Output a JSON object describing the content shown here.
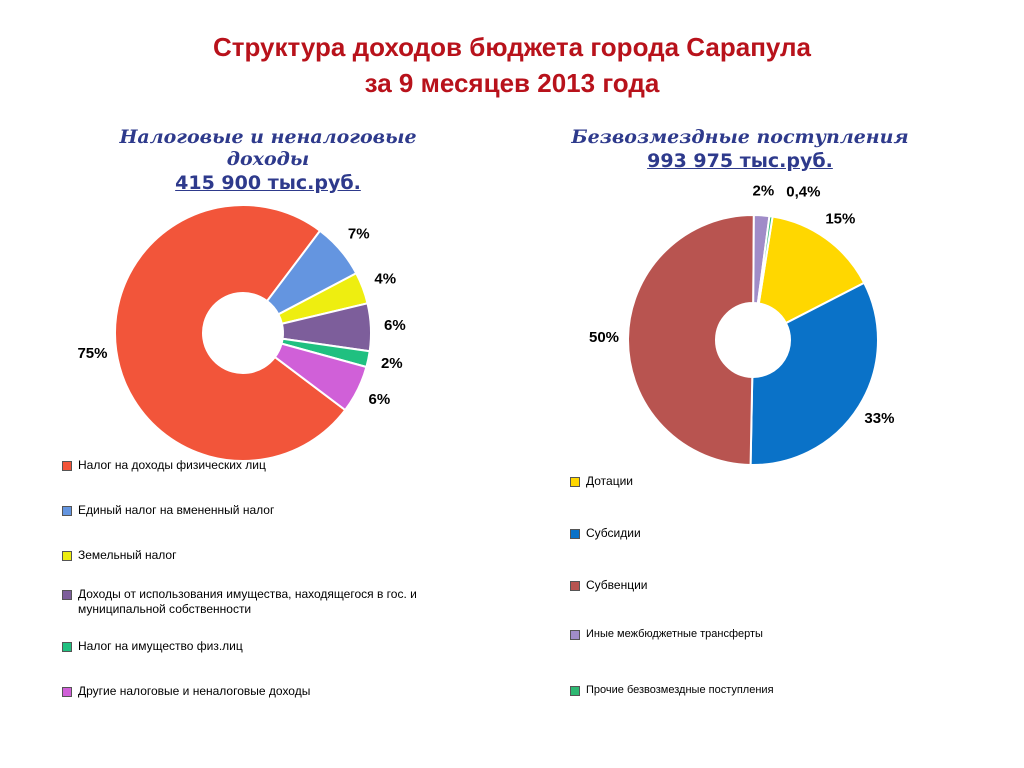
{
  "title": [
    "Структура доходов бюджета города Сарапула",
    "за 9 месяцев 2013 года"
  ],
  "chart_data": [
    {
      "type": "pie",
      "title": "Налоговые и неналоговые доходы",
      "subtitle": "415 900 тыс.руб.",
      "categories": [
        "Налог на доходы физических лиц",
        "Единый налог на вмененный налог",
        "Земельный налог",
        "Доходы от использования имущества, находящегося в гос. и муниципальной собственности",
        "Налог на имущество физ.лиц",
        "Другие налоговые и неналоговые доходы"
      ],
      "values": [
        75,
        7,
        4,
        6,
        2,
        6
      ],
      "value_labels": [
        "75%",
        "7%",
        "4%",
        "6%",
        "2%",
        "6%"
      ],
      "colors": [
        "#f2553a",
        "#6495e0",
        "#eeee10",
        "#7d5e9b",
        "#20c080",
        "#d060d8"
      ]
    },
    {
      "type": "pie",
      "title": "Безвозмездные поступления",
      "subtitle": "993 975 тыс.руб.",
      "categories": [
        "Дотации",
        "Субсидии",
        "Субвенции",
        "Иные межбюджетные трансферты",
        "Прочие безвозмездные поступления"
      ],
      "values": [
        15,
        33,
        50,
        2,
        0.4
      ],
      "value_labels": [
        "15%",
        "33%",
        "50%",
        "2%",
        "0,4%"
      ],
      "colors": [
        "#ffd700",
        "#0a72c8",
        "#b85450",
        "#a08cc8",
        "#2eb872"
      ]
    }
  ]
}
